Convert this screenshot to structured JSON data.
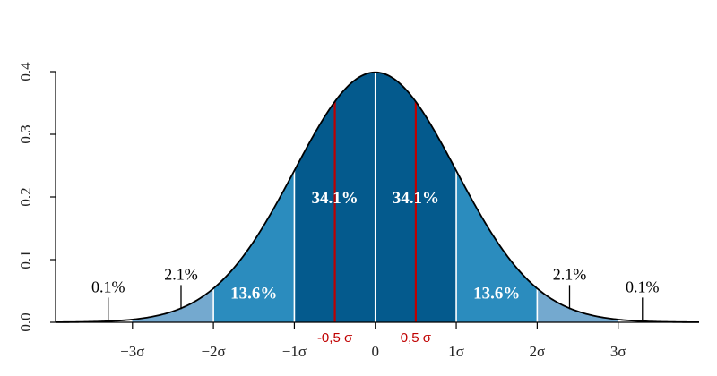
{
  "chart_data": {
    "type": "area",
    "title": "",
    "xlabel": "",
    "ylabel": "",
    "function": "normal-pdf",
    "mean": 0,
    "sd": 1,
    "xlim": [
      -3.95,
      4.0
    ],
    "ylim": [
      0,
      0.4
    ],
    "yticks": [
      0.0,
      0.1,
      0.2,
      0.3,
      0.4
    ],
    "ytick_labels": [
      "0.0",
      "0.1",
      "0.2",
      "0.3",
      "0.4"
    ],
    "xticks": [
      -3,
      -2,
      -1,
      0,
      1,
      2,
      3
    ],
    "xtick_labels": [
      "−3σ",
      "−2σ",
      "−1σ",
      "0",
      "1σ",
      "2σ",
      "3σ"
    ],
    "bands": [
      {
        "from": -1,
        "to": 0,
        "color": "#045a8d"
      },
      {
        "from": 0,
        "to": 1,
        "color": "#045a8d"
      },
      {
        "from": -2,
        "to": -1,
        "color": "#2b8cbe"
      },
      {
        "from": 1,
        "to": 2,
        "color": "#2b8cbe"
      },
      {
        "from": -3,
        "to": -2,
        "color": "#74a9cf"
      },
      {
        "from": 2,
        "to": 3,
        "color": "#74a9cf"
      }
    ],
    "band_labels": [
      {
        "text": "34.1%",
        "x": -0.5,
        "y": 0.19,
        "color": "#ffffff"
      },
      {
        "text": "34.1%",
        "x": 0.5,
        "y": 0.19,
        "color": "#ffffff"
      },
      {
        "text": "13.6%",
        "x": -1.5,
        "y": 0.038,
        "color": "#ffffff"
      },
      {
        "text": "13.6%",
        "x": 1.5,
        "y": 0.038,
        "color": "#ffffff"
      }
    ],
    "tail_annotations": [
      {
        "text": "2.1%",
        "x": -2.4,
        "label_y": 0.068
      },
      {
        "text": "2.1%",
        "x": 2.4,
        "label_y": 0.068
      },
      {
        "text": "0.1%",
        "x": -3.3,
        "label_y": 0.048
      },
      {
        "text": "0.1%",
        "x": 3.3,
        "label_y": 0.048
      }
    ],
    "markers": [
      {
        "x": -0.5,
        "label": "-0,5 σ",
        "color": "#c00000"
      },
      {
        "x": 0.5,
        "label": "0,5 σ",
        "color": "#c00000"
      }
    ],
    "colors": {
      "curve": "#000000",
      "divider": "#ffffff",
      "tick_text": "#222222"
    }
  }
}
